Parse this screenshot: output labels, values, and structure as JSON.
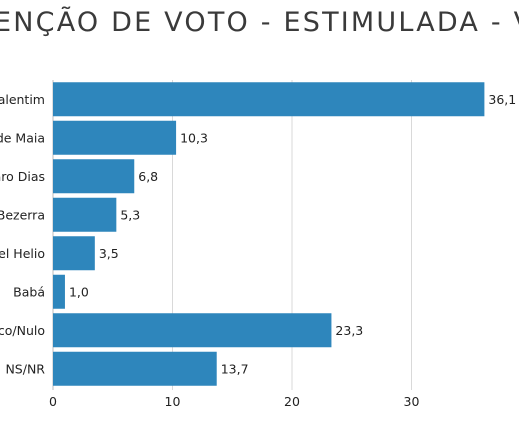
{
  "chart_data": {
    "type": "bar",
    "orientation": "horizontal",
    "title": "ENÇÃO DE VOTO - ESTIMULADA - VO",
    "categories": [
      "Valentim",
      "de Maia",
      "aro Dias",
      "Bezerra",
      "el Helio",
      "Babá",
      "co/Nulo",
      "NS/NR"
    ],
    "values": [
      36.1,
      10.3,
      6.8,
      5.3,
      3.5,
      1.0,
      23.3,
      13.7
    ],
    "value_labels": [
      "36,1",
      "10,3",
      "6,8",
      "5,3",
      "3,5",
      "1,0",
      "23,3",
      "13,7"
    ],
    "xlim": [
      0,
      40
    ],
    "xticks": [
      0,
      10,
      20,
      30
    ],
    "xtick_labels": [
      "0",
      "10",
      "20",
      "30"
    ],
    "grid": true,
    "bar_color": "#2e86bc",
    "grid_color": "#d9d9d9"
  }
}
